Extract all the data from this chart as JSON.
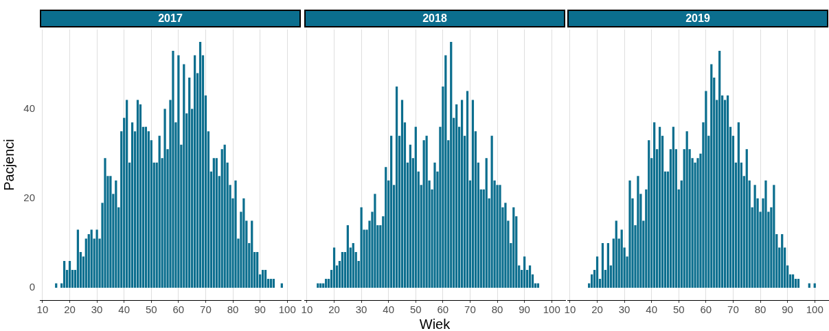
{
  "chart_data": [
    {
      "type": "histogram",
      "title": "2017",
      "ylabel": "Pacjenci",
      "color": "#0b6e8e",
      "grid": "x",
      "xlim": [
        9,
        105
      ],
      "xticks": [
        10,
        20,
        30,
        40,
        50,
        60,
        70,
        80,
        90,
        100
      ],
      "ylim": [
        -2.75,
        57.75
      ],
      "yticks": [
        0,
        20,
        40
      ],
      "bins": [
        14.5,
        15.5,
        16.5,
        17.5,
        18.5,
        19.5,
        20.5,
        21.5,
        22.5,
        23.5,
        24.5,
        25.5,
        26.5,
        27.5,
        28.5,
        29.5,
        30.5,
        31.5,
        32.5,
        33.5,
        34.5,
        35.5,
        36.5,
        37.5,
        38.5,
        39.5,
        40.5,
        41.5,
        42.5,
        43.5,
        44.5,
        45.5,
        46.5,
        47.5,
        48.5,
        49.5,
        50.5,
        51.5,
        52.5,
        53.5,
        54.5,
        55.5,
        56.5,
        57.5,
        58.5,
        59.5,
        60.5,
        61.5,
        62.5,
        63.5,
        64.5,
        65.5,
        66.5,
        67.5,
        68.5,
        69.5,
        70.5,
        71.5,
        72.5,
        73.5,
        74.5,
        75.5,
        76.5,
        77.5,
        78.5,
        79.5,
        80.5,
        81.5,
        82.5,
        83.5,
        84.5,
        85.5,
        86.5,
        87.5,
        88.5,
        89.5,
        90.5,
        91.5,
        92.5,
        93.5,
        94.5,
        95.5,
        96.5,
        97.5,
        98.5
      ],
      "values": [
        1,
        0,
        1,
        6,
        4,
        6,
        4,
        4,
        13,
        8,
        7,
        11,
        12,
        13,
        11,
        13,
        11,
        19,
        29,
        25,
        25,
        21,
        24,
        18,
        35,
        38,
        42,
        28,
        37,
        35,
        42,
        41,
        36,
        36,
        35,
        33,
        28,
        28,
        34,
        29,
        40,
        31,
        42,
        53,
        37,
        52,
        32,
        50,
        39,
        47,
        40,
        52,
        48,
        55,
        52,
        43,
        35,
        26,
        29,
        29,
        25,
        31,
        32,
        28,
        23,
        20,
        24,
        11,
        17,
        20,
        15,
        10,
        15,
        8,
        8,
        3,
        4,
        4,
        2,
        2,
        2,
        0,
        0,
        1
      ]
    },
    {
      "type": "histogram",
      "title": "2018",
      "xlabel": "Wiek",
      "color": "#0b6e8e",
      "grid": "x",
      "tick_labels": "x",
      "xlim": [
        9,
        105
      ],
      "xticks": [
        10,
        20,
        30,
        40,
        50,
        60,
        70,
        80,
        90,
        100
      ],
      "ylim": [
        -2.75,
        57.75
      ],
      "bins": [
        13.5,
        14.5,
        15.5,
        16.5,
        17.5,
        18.5,
        19.5,
        20.5,
        21.5,
        22.5,
        23.5,
        24.5,
        25.5,
        26.5,
        27.5,
        28.5,
        29.5,
        30.5,
        31.5,
        32.5,
        33.5,
        34.5,
        35.5,
        36.5,
        37.5,
        38.5,
        39.5,
        40.5,
        41.5,
        42.5,
        43.5,
        44.5,
        45.5,
        46.5,
        47.5,
        48.5,
        49.5,
        50.5,
        51.5,
        52.5,
        53.5,
        54.5,
        55.5,
        56.5,
        57.5,
        58.5,
        59.5,
        60.5,
        61.5,
        62.5,
        63.5,
        64.5,
        65.5,
        66.5,
        67.5,
        68.5,
        69.5,
        70.5,
        71.5,
        72.5,
        73.5,
        74.5,
        75.5,
        76.5,
        77.5,
        78.5,
        79.5,
        80.5,
        81.5,
        82.5,
        83.5,
        84.5,
        85.5,
        86.5,
        87.5,
        88.5,
        89.5,
        90.5,
        91.5,
        92.5,
        93.5,
        94.5,
        95.5
      ],
      "values": [
        1,
        1,
        1,
        2,
        2,
        4,
        9,
        5,
        6,
        8,
        8,
        14,
        9,
        10,
        8,
        6,
        18,
        13,
        13,
        15,
        17,
        21,
        14,
        14,
        16,
        27,
        24,
        34,
        23,
        45,
        34,
        42,
        37,
        28,
        32,
        29,
        36,
        26,
        23,
        33,
        34,
        24,
        22,
        28,
        26,
        36,
        45,
        52,
        33,
        55,
        38,
        41,
        36,
        42,
        34,
        44,
        24,
        42,
        35,
        28,
        22,
        22,
        29,
        20,
        34,
        24,
        23,
        23,
        18,
        19,
        15,
        10,
        18,
        16,
        5,
        4,
        7,
        4,
        5,
        3,
        1,
        1
      ]
    },
    {
      "type": "histogram",
      "title": "2019",
      "color": "#0b6e8e",
      "grid": "x",
      "tick_labels": "x",
      "xlim": [
        9,
        105
      ],
      "xticks": [
        10,
        20,
        30,
        40,
        50,
        60,
        70,
        80,
        90,
        100
      ],
      "ylim": [
        -2.75,
        57.75
      ],
      "bins": [
        16.5,
        17.5,
        18.5,
        19.5,
        20.5,
        21.5,
        22.5,
        23.5,
        24.5,
        25.5,
        26.5,
        27.5,
        28.5,
        29.5,
        30.5,
        31.5,
        32.5,
        33.5,
        34.5,
        35.5,
        36.5,
        37.5,
        38.5,
        39.5,
        40.5,
        41.5,
        42.5,
        43.5,
        44.5,
        45.5,
        46.5,
        47.5,
        48.5,
        49.5,
        50.5,
        51.5,
        52.5,
        53.5,
        54.5,
        55.5,
        56.5,
        57.5,
        58.5,
        59.5,
        60.5,
        61.5,
        62.5,
        63.5,
        64.5,
        65.5,
        66.5,
        67.5,
        68.5,
        69.5,
        70.5,
        71.5,
        72.5,
        73.5,
        74.5,
        75.5,
        76.5,
        77.5,
        78.5,
        79.5,
        80.5,
        81.5,
        82.5,
        83.5,
        84.5,
        85.5,
        86.5,
        87.5,
        88.5,
        89.5,
        90.5,
        91.5,
        92.5,
        93.5,
        94.5,
        95.5,
        96.5,
        97.5,
        98.5,
        99.5,
        100.5
      ],
      "values": [
        1,
        3,
        4,
        7,
        2,
        10,
        4,
        10,
        5,
        11,
        15,
        11,
        13,
        9,
        7,
        24,
        20,
        14,
        25,
        21,
        15,
        22,
        33,
        29,
        37,
        31,
        36,
        34,
        26,
        26,
        31,
        36,
        31,
        22,
        24,
        31,
        35,
        31,
        29,
        28,
        29,
        30,
        37,
        44,
        34,
        50,
        47,
        42,
        53,
        43,
        42,
        43,
        36,
        34,
        28,
        37,
        28,
        25,
        31,
        24,
        18,
        23,
        20,
        17,
        20,
        24,
        17,
        18,
        23,
        12,
        9,
        12,
        9,
        5,
        3,
        3,
        2,
        2,
        0,
        0,
        0,
        1,
        0,
        1
      ]
    }
  ]
}
